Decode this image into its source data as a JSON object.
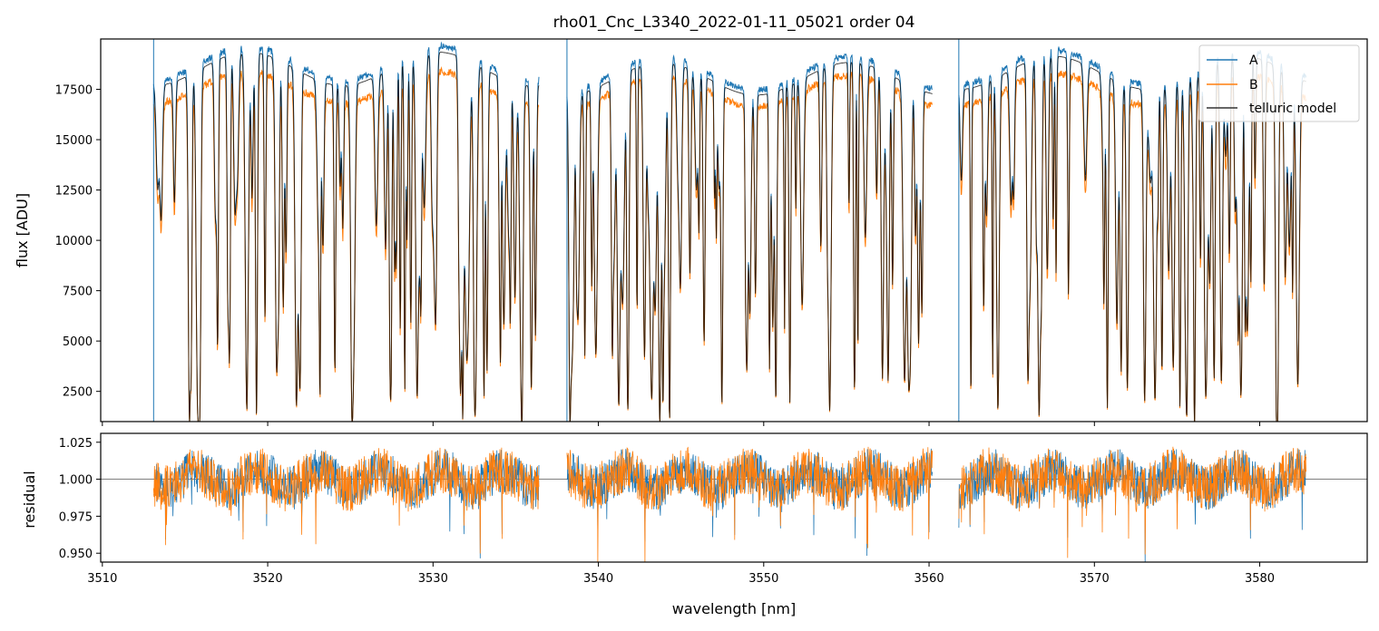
{
  "chart_data": [
    {
      "type": "line",
      "title": "rho01_Cnc_L3340_2022-01-11_05021  order 04",
      "xlabel": "",
      "ylabel": "flux [ADU]",
      "xlim": [
        3509.9,
        3586.5
      ],
      "ylim": [
        1000,
        20000
      ],
      "x_ticks": [
        3510,
        3520,
        3530,
        3540,
        3550,
        3560,
        3570,
        3580
      ],
      "y_ticks": [
        2500,
        5000,
        7500,
        10000,
        12500,
        15000,
        17500
      ],
      "y_tick_labels": [
        "2500",
        "5000",
        "7500",
        "10000",
        "12500",
        "15000",
        "17500"
      ],
      "segments": [
        {
          "x_start": 3513.1,
          "x_end": 3536.4,
          "A_level": 18800,
          "B_level": 17600
        },
        {
          "x_start": 3538.1,
          "x_end": 3560.2,
          "A_level": 18300,
          "B_level": 17400
        },
        {
          "x_start": 3561.8,
          "x_end": 3582.8,
          "A_level": 18600,
          "B_level": 17500
        }
      ],
      "series": [
        {
          "name": "A",
          "color": "#1f77b4"
        },
        {
          "name": "B",
          "color": "#ff7f0e"
        },
        {
          "name": "telluric model",
          "color": "#000000"
        }
      ],
      "legend": {
        "position": "top-right",
        "entries": [
          "A",
          "B",
          "telluric model"
        ]
      }
    },
    {
      "type": "line",
      "title": "",
      "xlabel": "wavelength [nm]",
      "ylabel": "residual",
      "xlim": [
        3509.9,
        3586.5
      ],
      "ylim": [
        0.944,
        1.031
      ],
      "x_ticks": [
        3510,
        3520,
        3530,
        3540,
        3550,
        3560,
        3570,
        3580
      ],
      "x_tick_labels": [
        "3510",
        "3520",
        "3530",
        "3540",
        "3550",
        "3560",
        "3570",
        "3580"
      ],
      "y_ticks": [
        0.95,
        0.975,
        1.0,
        1.025
      ],
      "y_tick_labels": [
        "0.950",
        "0.975",
        "1.000",
        "1.025"
      ],
      "reference_line": 1.0,
      "series": [
        {
          "name": "A",
          "color": "#1f77b4"
        },
        {
          "name": "B",
          "color": "#ff7f0e"
        }
      ]
    }
  ]
}
